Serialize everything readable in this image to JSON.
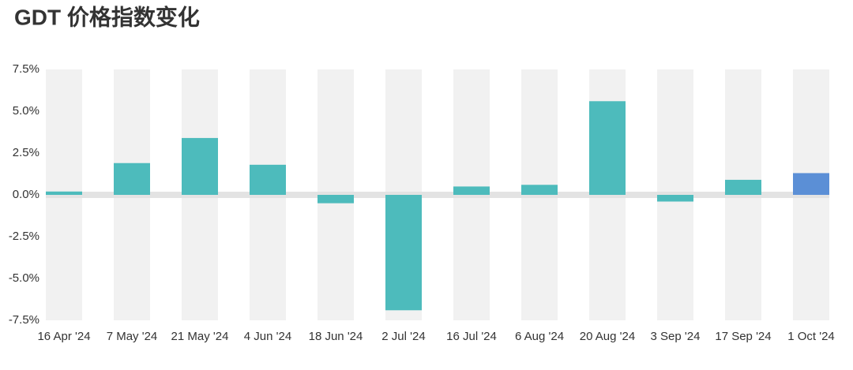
{
  "chart_data": {
    "type": "bar",
    "title": "GDT 价格指数变化",
    "categories": [
      "16 Apr '24",
      "7 May '24",
      "21 May '24",
      "4 Jun '24",
      "18 Jun '24",
      "2 Jul '24",
      "16 Jul '24",
      "6 Aug '24",
      "20 Aug '24",
      "3 Sep '24",
      "17 Sep '24",
      "1 Oct '24"
    ],
    "values": [
      0.2,
      1.9,
      3.4,
      1.8,
      -0.5,
      -6.9,
      0.5,
      0.6,
      5.6,
      -0.4,
      0.9,
      1.3
    ],
    "colors": [
      "#4dbbbc",
      "#4dbbbc",
      "#4dbbbc",
      "#4dbbbc",
      "#4dbbbc",
      "#4dbbbc",
      "#4dbbbc",
      "#4dbbbc",
      "#4dbbbc",
      "#4dbbbc",
      "#4dbbbc",
      "#5b8fd6"
    ],
    "ylim": [
      -7.5,
      7.5
    ],
    "yticks": [
      {
        "value": 7.5,
        "label": "7.5%"
      },
      {
        "value": 5,
        "label": "5.0%"
      },
      {
        "value": 2.5,
        "label": "2.5%"
      },
      {
        "value": 0,
        "label": "0.0%"
      },
      {
        "value": -2.5,
        "label": "-2.5%"
      },
      {
        "value": -5,
        "label": "-5.0%"
      },
      {
        "value": -7.5,
        "label": "-7.5%"
      }
    ]
  }
}
